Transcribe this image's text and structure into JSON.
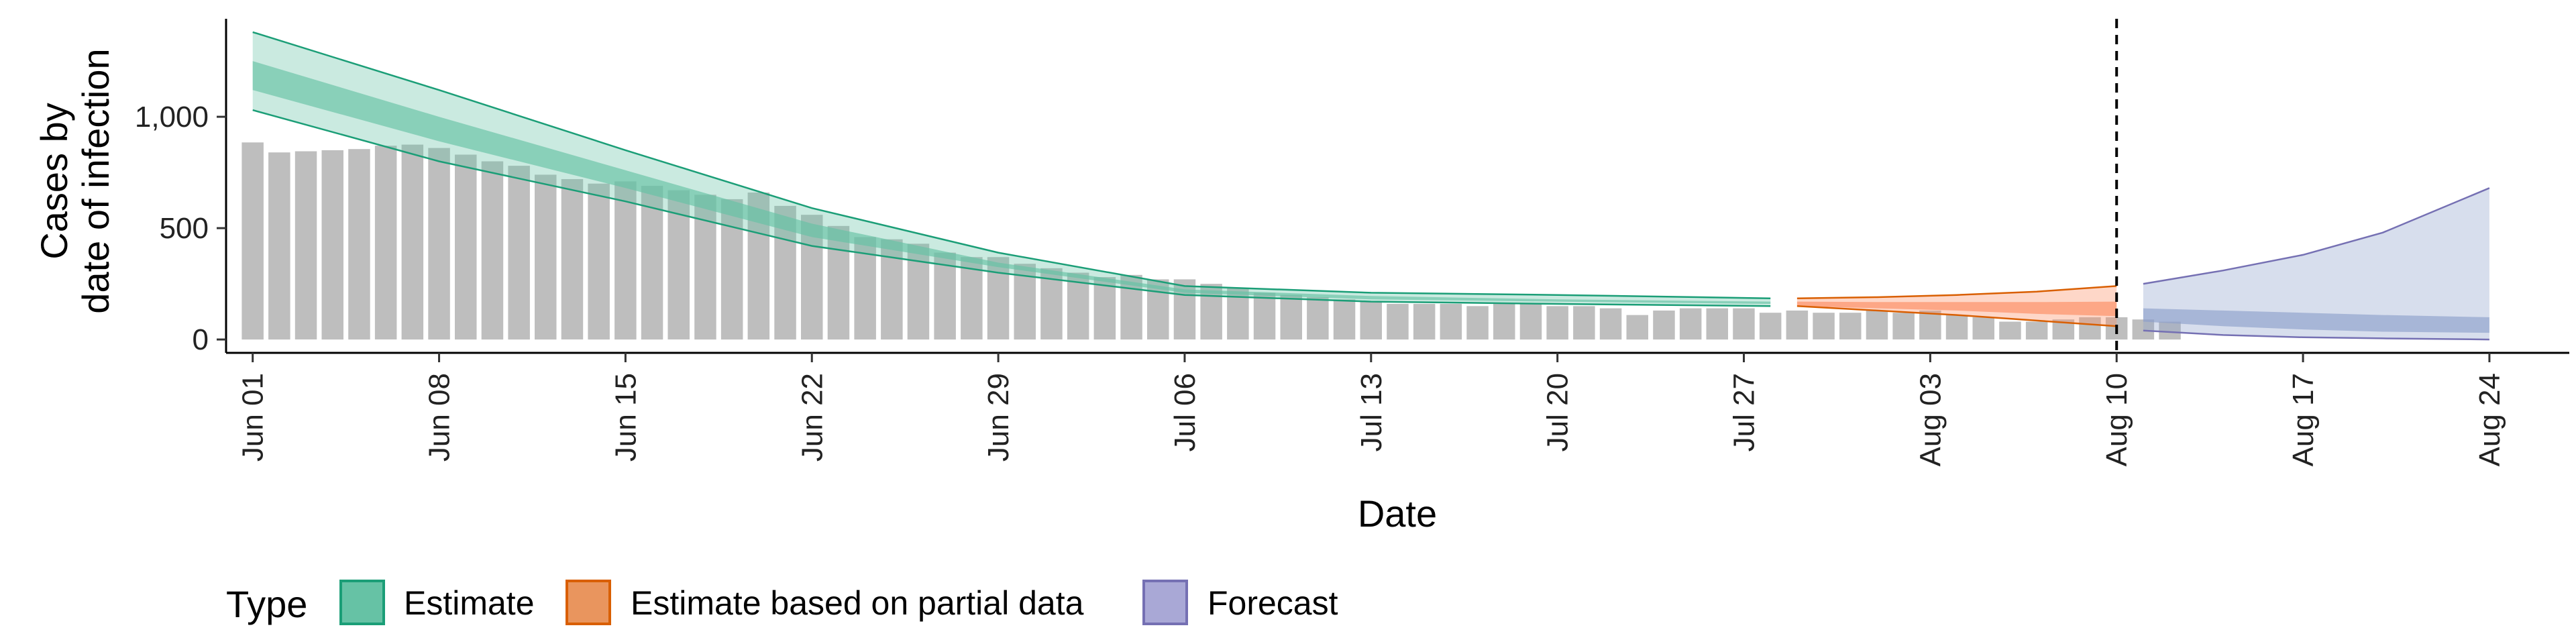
{
  "chart_data": {
    "type": "bar",
    "xlabel": "Date",
    "ylabel_lines": [
      "Cases by",
      "date of infection"
    ],
    "ylim": [
      -60,
      1440
    ],
    "yticks": [
      0,
      500,
      1000
    ],
    "ytick_labels": [
      "0",
      "500",
      "1,000"
    ],
    "x_start": "2020-05-31",
    "x_end": "2020-08-27",
    "xticks": [
      "2020-06-01",
      "2020-06-08",
      "2020-06-15",
      "2020-06-22",
      "2020-06-29",
      "2020-07-06",
      "2020-07-13",
      "2020-07-20",
      "2020-07-27",
      "2020-08-03",
      "2020-08-10",
      "2020-08-17",
      "2020-08-24"
    ],
    "xtick_labels": [
      "Jun 01",
      "Jun 08",
      "Jun 15",
      "Jun 22",
      "Jun 29",
      "Jul 06",
      "Jul 13",
      "Jul 20",
      "Jul 27",
      "Aug 03",
      "Aug 10",
      "Aug 17",
      "Aug 24"
    ],
    "vline_date": "2020-08-10",
    "bars": {
      "start_date": "2020-06-01",
      "color": "#BEBEBE",
      "values": [
        885,
        840,
        845,
        850,
        855,
        870,
        875,
        860,
        830,
        800,
        780,
        740,
        720,
        700,
        710,
        690,
        670,
        650,
        630,
        660,
        600,
        560,
        510,
        460,
        450,
        430,
        390,
        370,
        370,
        340,
        320,
        300,
        280,
        290,
        270,
        270,
        250,
        230,
        210,
        200,
        190,
        180,
        170,
        160,
        160,
        160,
        150,
        160,
        160,
        150,
        150,
        140,
        110,
        130,
        140,
        140,
        140,
        120,
        130,
        120,
        120,
        130,
        120,
        130,
        110,
        100,
        80,
        80,
        90,
        100,
        100,
        90,
        80
      ]
    },
    "series": [
      {
        "name": "Estimate",
        "fill": "#66C2A5",
        "line": "#1B9E77",
        "dates": [
          "2020-06-01",
          "2020-06-08",
          "2020-06-15",
          "2020-06-22",
          "2020-06-29",
          "2020-07-06",
          "2020-07-13",
          "2020-07-20",
          "2020-07-28"
        ],
        "outer_upper": [
          1380,
          1120,
          850,
          590,
          390,
          240,
          210,
          200,
          185
        ],
        "outer_lower": [
          1030,
          800,
          620,
          420,
          300,
          200,
          170,
          160,
          150
        ],
        "inner_upper": [
          1250,
          1000,
          760,
          520,
          345,
          225,
          195,
          180,
          170
        ],
        "inner_lower": [
          1120,
          890,
          680,
          460,
          325,
          210,
          180,
          170,
          160
        ]
      },
      {
        "name": "Estimate based on partial data",
        "fill": "#FC8D62",
        "line": "#D95F02",
        "dates": [
          "2020-07-29",
          "2020-08-01",
          "2020-08-04",
          "2020-08-07",
          "2020-08-10"
        ],
        "outer_upper": [
          185,
          190,
          200,
          215,
          240
        ],
        "outer_lower": [
          150,
          130,
          110,
          85,
          60
        ],
        "inner_upper": [
          170,
          168,
          168,
          168,
          170
        ],
        "inner_lower": [
          150,
          140,
          130,
          115,
          105
        ]
      },
      {
        "name": "Forecast",
        "fill": "#8DA0CB",
        "line": "#7570B3",
        "dates": [
          "2020-08-11",
          "2020-08-14",
          "2020-08-17",
          "2020-08-20",
          "2020-08-24"
        ],
        "outer_upper": [
          250,
          310,
          380,
          480,
          680
        ],
        "outer_lower": [
          40,
          20,
          10,
          5,
          0
        ],
        "inner_upper": [
          140,
          130,
          120,
          110,
          100
        ],
        "inner_lower": [
          80,
          60,
          45,
          35,
          30
        ]
      }
    ],
    "legend": {
      "title": "Type",
      "placement": "bottom-left",
      "items": [
        "Estimate",
        "Estimate based on partial data",
        "Forecast"
      ]
    }
  }
}
